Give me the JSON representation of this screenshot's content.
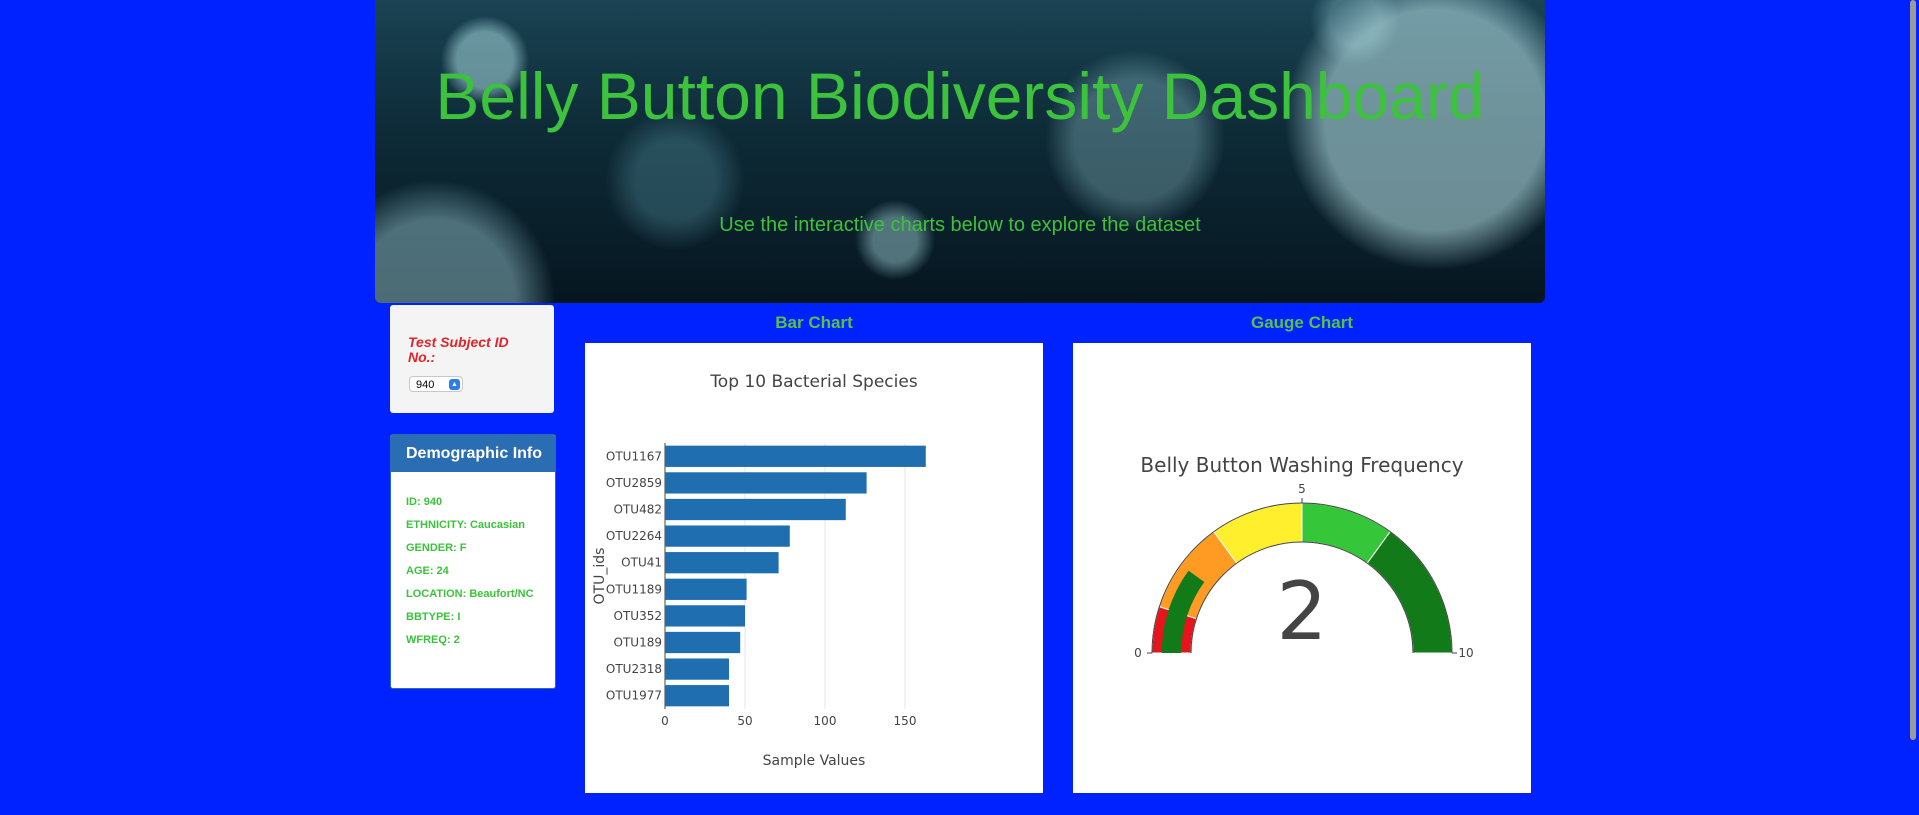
{
  "header": {
    "title": "Belly Button Biodiversity Dashboard",
    "subtitle": "Use the interactive charts below to explore the dataset"
  },
  "selector": {
    "label": "Test Subject ID No.:",
    "selected_value": "940"
  },
  "demographic": {
    "title": "Demographic Info",
    "items": [
      "ID: 940",
      "ETHNICITY: Caucasian",
      "GENDER: F",
      "AGE: 24",
      "LOCATION: Beaufort/NC",
      "BBTYPE: I",
      "WFREQ: 2"
    ]
  },
  "bar_section": {
    "heading": "Bar Chart"
  },
  "gauge_section": {
    "heading": "Gauge Chart"
  },
  "colors": {
    "page_background": "#0022ff",
    "title_green": "#3cc23c",
    "bar_fill": "#1f6fb0",
    "panel_header": "#2a6db3",
    "label_red": "#e0252a"
  },
  "chart_data": [
    {
      "type": "bar",
      "orientation": "horizontal",
      "title": "Top 10 Bacterial Species",
      "xlabel": "Sample Values",
      "ylabel": "OTU_ids",
      "categories": [
        "OTU1167",
        "OTU2859",
        "OTU482",
        "OTU2264",
        "OTU41",
        "OTU1189",
        "OTU352",
        "OTU189",
        "OTU2318",
        "OTU1977"
      ],
      "values": [
        163,
        126,
        113,
        78,
        71,
        51,
        50,
        47,
        40,
        40
      ],
      "xlim": [
        0,
        175
      ],
      "xticks": [
        0,
        50,
        100,
        150
      ],
      "grid": true
    },
    {
      "type": "gauge",
      "title": "Belly Button Washing Frequency",
      "value": 2,
      "range": [
        0,
        10
      ],
      "ticks": [
        0,
        5,
        10
      ],
      "steps": [
        {
          "range": [
            0,
            1
          ],
          "color": "#e8141b"
        },
        {
          "range": [
            1,
            3
          ],
          "color": "#ff9a22"
        },
        {
          "range": [
            3,
            5
          ],
          "color": "#ffef2c"
        },
        {
          "range": [
            5,
            7
          ],
          "color": "#36c63a"
        },
        {
          "range": [
            7,
            10
          ],
          "color": "#127a19"
        }
      ],
      "bar_color": "#127a19"
    }
  ]
}
